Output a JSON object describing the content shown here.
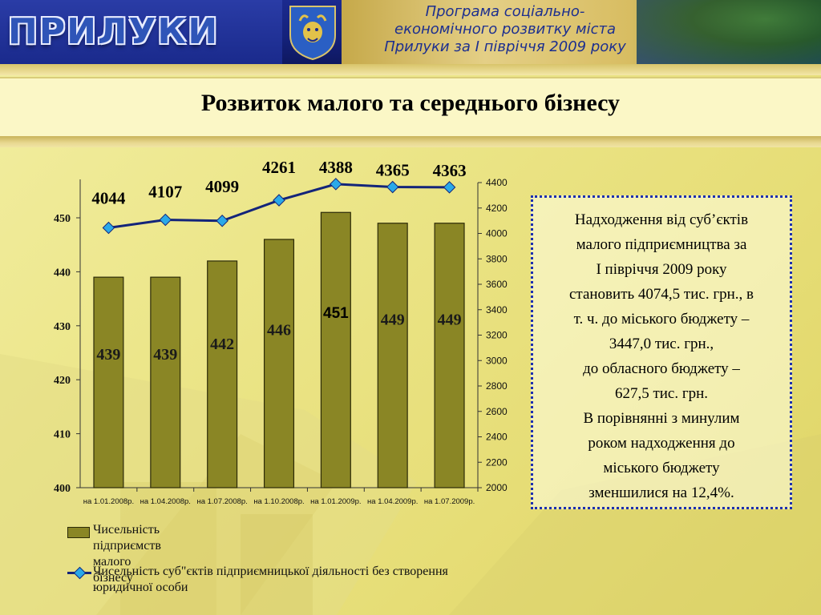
{
  "banner": {
    "logo_text": "ПРИЛУКИ",
    "program_lines": [
      "Програма соціально-",
      "економічного розвитку міста",
      "Прилуки за І  півріччя 2009 року"
    ],
    "colors": {
      "banner_blue": "#1b2a8f",
      "program_text": "#1d2f8f"
    }
  },
  "slide": {
    "title": "Розвиток малого та середнього бізнесу"
  },
  "chart_data": {
    "type": "bar",
    "categories": [
      "на 1.01.2008р.",
      "на 1.04.2008р.",
      "на 1.07.2008р.",
      "на 1.10.2008р.",
      "на 1.01.2009р.",
      "на 1.04.2009р.",
      "на 1.07.2009р."
    ],
    "series": [
      {
        "name": "Чисельність підприємств малого бізнесу",
        "kind": "bar",
        "axis": "left",
        "color": "#8a8625",
        "values": [
          439,
          439,
          442,
          446,
          451,
          449,
          449
        ]
      },
      {
        "name": "Чисельність суб\"єктів підприємницької діяльності без створення юридичної особи",
        "kind": "line",
        "axis": "right",
        "color": "#13247a",
        "marker_color": "#2aa9e8",
        "values": [
          4044,
          4107,
          4099,
          4261,
          4388,
          4365,
          4363
        ]
      }
    ],
    "left_axis": {
      "min": 400,
      "max": 450,
      "ticks": [
        400,
        410,
        420,
        430,
        440,
        450
      ]
    },
    "right_axis": {
      "min": 2000,
      "max": 4400,
      "ticks": [
        2000,
        2200,
        2400,
        2600,
        2800,
        3000,
        3200,
        3400,
        3600,
        3800,
        4000,
        4200,
        4400
      ]
    },
    "grid": false,
    "legend_position": "bottom"
  },
  "info_box": {
    "lines": [
      "Надходження від суб’єктів",
      "малого підприємництва за",
      "І півріччя 2009 року",
      "становить 4074,5 тис. грн., в",
      "т. ч. до міського бюджету –",
      "3447,0 тис. грн.,",
      "до обласного бюджету –",
      "627,5 тис. грн.",
      "В порівнянні з минулим",
      "роком надходження до",
      "міського бюджету",
      "зменшилися на 12,4%."
    ]
  }
}
